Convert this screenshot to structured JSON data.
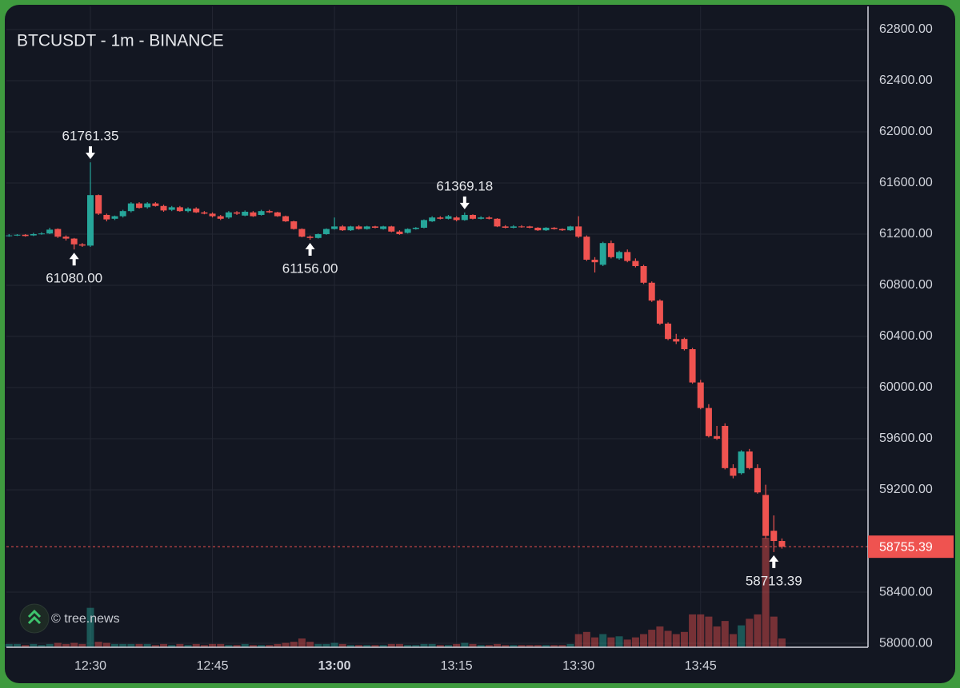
{
  "chart_data": {
    "type": "candlestick",
    "title": "BTCUSDT - 1m - BINANCE",
    "watermark": "© tree.news",
    "up_color": "#26a69a",
    "down_color": "#ef5350",
    "grid": true,
    "ylim": [
      57969,
      62981
    ],
    "yticks": [
      {
        "value": 62800,
        "label": "62800.00"
      },
      {
        "value": 62400,
        "label": "62400.00"
      },
      {
        "value": 62000,
        "label": "62000.00"
      },
      {
        "value": 61600,
        "label": "61600.00"
      },
      {
        "value": 61200,
        "label": "61200.00"
      },
      {
        "value": 60800,
        "label": "60800.00"
      },
      {
        "value": 60400,
        "label": "60400.00"
      },
      {
        "value": 60000,
        "label": "60000.00"
      },
      {
        "value": 59600,
        "label": "59600.00"
      },
      {
        "value": 59200,
        "label": "59200.00"
      },
      {
        "value": 58400,
        "label": "58400.00"
      },
      {
        "value": 58000,
        "label": "58000.00"
      }
    ],
    "xticks": [
      "12:30",
      "12:45",
      "13:00",
      "13:15",
      "13:30",
      "13:45"
    ],
    "xtick_bold_index": 2,
    "last_price": {
      "value": 58755.39,
      "label": "58755.39"
    },
    "annotations": [
      {
        "x": "12:30",
        "value": 61761.35,
        "label": "61761.35",
        "position": "above"
      },
      {
        "x": "12:28",
        "value": 61080,
        "label": "61080.00",
        "position": "below"
      },
      {
        "x": "12:57",
        "value": 61156,
        "label": "61156.00",
        "position": "below"
      },
      {
        "x": "13:16",
        "value": 61369.18,
        "label": "61369.18",
        "position": "above"
      },
      {
        "x": "13:54",
        "value": 58713.39,
        "label": "58713.39",
        "position": "below"
      }
    ],
    "candles": {
      "x": [
        "12:20",
        "12:21",
        "12:22",
        "12:23",
        "12:24",
        "12:25",
        "12:26",
        "12:27",
        "12:28",
        "12:29",
        "12:30",
        "12:31",
        "12:32",
        "12:33",
        "12:34",
        "12:35",
        "12:36",
        "12:37",
        "12:38",
        "12:39",
        "12:40",
        "12:41",
        "12:42",
        "12:43",
        "12:44",
        "12:45",
        "12:46",
        "12:47",
        "12:48",
        "12:49",
        "12:50",
        "12:51",
        "12:52",
        "12:53",
        "12:54",
        "12:55",
        "12:56",
        "12:57",
        "12:58",
        "12:59",
        "13:00",
        "13:01",
        "13:02",
        "13:03",
        "13:04",
        "13:05",
        "13:06",
        "13:07",
        "13:08",
        "13:09",
        "13:10",
        "13:11",
        "13:12",
        "13:13",
        "13:14",
        "13:15",
        "13:16",
        "13:17",
        "13:18",
        "13:19",
        "13:20",
        "13:21",
        "13:22",
        "13:23",
        "13:24",
        "13:25",
        "13:26",
        "13:27",
        "13:28",
        "13:29",
        "13:30",
        "13:31",
        "13:32",
        "13:33",
        "13:34",
        "13:35",
        "13:36",
        "13:37",
        "13:38",
        "13:39",
        "13:40",
        "13:41",
        "13:42",
        "13:43",
        "13:44",
        "13:45",
        "13:46",
        "13:47",
        "13:48",
        "13:49",
        "13:50",
        "13:51",
        "13:52",
        "13:53",
        "13:54",
        "13:55"
      ],
      "open": [
        61185,
        61190,
        61195,
        61190,
        61200,
        61205,
        61240,
        61180,
        61165,
        61120,
        61110,
        61505,
        61350,
        61320,
        61340,
        61380,
        61440,
        61410,
        61440,
        61420,
        61390,
        61410,
        61380,
        61400,
        61370,
        61360,
        61340,
        61330,
        61370,
        61345,
        61370,
        61350,
        61380,
        61370,
        61340,
        61300,
        61240,
        61180,
        61170,
        61200,
        61240,
        61260,
        61230,
        61260,
        61240,
        61260,
        61240,
        61260,
        61220,
        61210,
        61240,
        61250,
        61300,
        61330,
        61320,
        61330,
        61310,
        61350,
        61320,
        61330,
        61320,
        61260,
        61250,
        61260,
        61260,
        61250,
        61230,
        61250,
        61240,
        61230,
        61260,
        61180,
        61000,
        60960,
        61130,
        61010,
        61060,
        60990,
        60950,
        60820,
        60680,
        60500,
        60380,
        60380,
        60300,
        60040,
        59840,
        59620,
        59700,
        59370,
        59330,
        59500,
        59370,
        59160,
        58880,
        58800
      ],
      "high": [
        61200,
        61200,
        61200,
        61210,
        61215,
        61250,
        61245,
        61190,
        61170,
        61130,
        61761.35,
        61510,
        61360,
        61345,
        61390,
        61450,
        61450,
        61450,
        61450,
        61430,
        61420,
        61420,
        61410,
        61410,
        61380,
        61370,
        61350,
        61380,
        61380,
        61385,
        61380,
        61390,
        61390,
        61375,
        61345,
        61305,
        61245,
        61190,
        61205,
        61245,
        61330,
        61270,
        61265,
        61270,
        61265,
        61265,
        61265,
        61265,
        61230,
        61245,
        61255,
        61315,
        61340,
        61340,
        61350,
        61340,
        61369.18,
        61355,
        61340,
        61340,
        61325,
        61270,
        61270,
        61270,
        61265,
        61255,
        61255,
        61255,
        61245,
        61265,
        61340,
        61190,
        61020,
        61140,
        61150,
        61070,
        61080,
        61010,
        60960,
        60830,
        60690,
        60510,
        60420,
        60390,
        60310,
        60060,
        59870,
        59700,
        59720,
        59400,
        59510,
        59520,
        59400,
        59240,
        59000,
        58820
      ],
      "low": [
        61180,
        61185,
        61180,
        61185,
        61195,
        61200,
        61170,
        61150,
        61080,
        61100,
        61100,
        61350,
        61300,
        61310,
        61330,
        61370,
        61400,
        61400,
        61415,
        61375,
        61380,
        61375,
        61370,
        61365,
        61355,
        61330,
        61310,
        61320,
        61350,
        61340,
        61335,
        61345,
        61365,
        61335,
        61295,
        61235,
        61175,
        61156,
        61165,
        61195,
        61235,
        61225,
        61225,
        61235,
        61235,
        61245,
        61235,
        61215,
        61195,
        61205,
        61235,
        61245,
        61295,
        61315,
        61315,
        61300,
        61305,
        61315,
        61315,
        61315,
        61255,
        61245,
        61245,
        61250,
        61245,
        61225,
        61225,
        61235,
        61225,
        61225,
        61170,
        60990,
        60900,
        60950,
        61010,
        61000,
        60980,
        60940,
        60810,
        60670,
        60490,
        60370,
        60340,
        60290,
        60030,
        59830,
        59610,
        59590,
        59360,
        59290,
        59320,
        59360,
        59170,
        58820,
        58713.39,
        58740
      ],
      "close": [
        61190,
        61195,
        61185,
        61200,
        61205,
        61235,
        61180,
        61165,
        61120,
        61110,
        61505,
        61360,
        61315,
        61340,
        61380,
        61440,
        61405,
        61440,
        61420,
        61385,
        61410,
        61380,
        61400,
        61370,
        61360,
        61340,
        61320,
        61370,
        61360,
        61375,
        61340,
        61380,
        61370,
        61340,
        61300,
        61240,
        61180,
        61170,
        61200,
        61240,
        61260,
        61230,
        61260,
        61240,
        61260,
        61250,
        61260,
        61220,
        61200,
        61240,
        61250,
        61310,
        61330,
        61320,
        61340,
        61310,
        61350,
        61320,
        61330,
        61320,
        61260,
        61250,
        61260,
        61255,
        61250,
        61230,
        61250,
        61240,
        61230,
        61260,
        61180,
        61000,
        60980,
        61130,
        61020,
        61060,
        60990,
        60950,
        60820,
        60680,
        60500,
        60380,
        60360,
        60300,
        60040,
        59840,
        59620,
        59600,
        59370,
        59310,
        59500,
        59370,
        59180,
        58840,
        58800,
        58755.39
      ],
      "volume": [
        3,
        3,
        2,
        3,
        2,
        3,
        4,
        3,
        4,
        3,
        36,
        5,
        4,
        3,
        3,
        3,
        3,
        3,
        2,
        3,
        2,
        3,
        2,
        3,
        2,
        3,
        3,
        2,
        2,
        3,
        2,
        2,
        2,
        3,
        4,
        5,
        8,
        5,
        3,
        3,
        4,
        3,
        2,
        2,
        2,
        2,
        2,
        3,
        3,
        2,
        2,
        3,
        3,
        2,
        2,
        3,
        4,
        3,
        2,
        2,
        3,
        2,
        2,
        2,
        2,
        2,
        2,
        2,
        2,
        3,
        12,
        14,
        9,
        12,
        9,
        10,
        7,
        9,
        12,
        16,
        19,
        15,
        12,
        14,
        30,
        30,
        28,
        19,
        24,
        12,
        20,
        26,
        30,
        100,
        28,
        8
      ]
    }
  }
}
